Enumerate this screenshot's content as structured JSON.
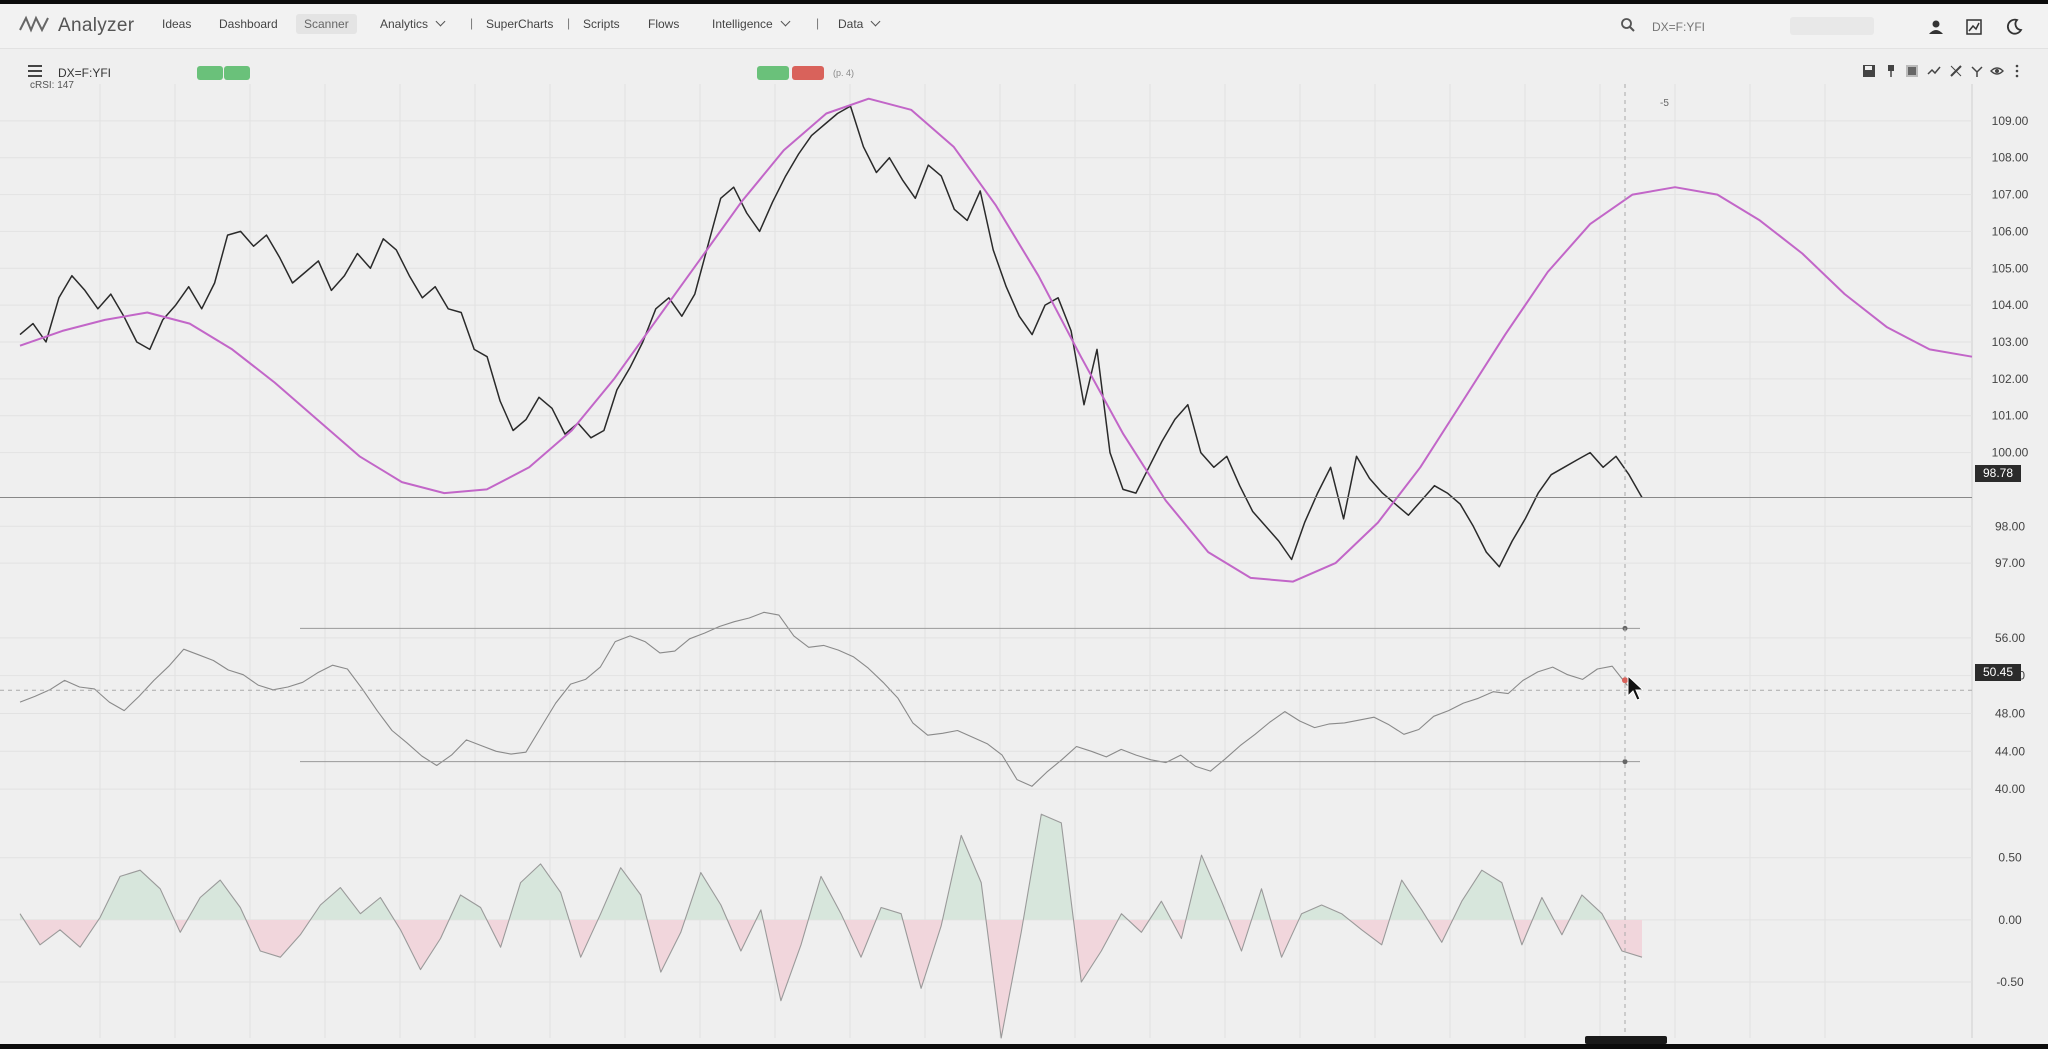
{
  "app": {
    "name": "Analyzer"
  },
  "nav": {
    "items": [
      "Ideas",
      "Dashboard",
      "Scanner",
      "Analytics",
      "SuperCharts",
      "Scripts",
      "Flows",
      "Intelligence",
      "Data"
    ],
    "active": "Scanner"
  },
  "search": {
    "placeholder": "DX=F:YFI"
  },
  "chart": {
    "symbol": "DX=F:YFI",
    "sub_info": "cRSI: 147",
    "status_text": "(p. 4)",
    "cursor_bar_label": "-5",
    "last_price_label": "98.78",
    "rsi_value_label": "50.45"
  },
  "colors": {
    "price_line": "#2a2a2a",
    "cycle_line": "#c266c8",
    "rsi_line": "#8a8a8a",
    "pill_green": "#6ac17a",
    "pill_red": "#d9625b",
    "osc_positive_fill": "#d7e6dc",
    "osc_negative_fill": "#f1d6dc"
  },
  "icons": [
    "menu-icon",
    "search-icon",
    "user-icon",
    "chart-settings-icon",
    "dark-mode-icon",
    "save-icon",
    "pin-icon",
    "layout-icon",
    "compare-icon",
    "draw-tool-icon",
    "indicator-icon",
    "eye-icon",
    "more-icon"
  ],
  "chart_data": [
    {
      "type": "line",
      "title": "",
      "series": [
        {
          "name": "",
          "color": "#2a2a2a",
          "values": [
            103.2,
            103.5,
            103.0,
            104.2,
            104.8,
            104.4,
            103.9,
            104.3,
            103.7,
            103.0,
            102.8,
            103.6,
            104.0,
            104.5,
            103.9,
            104.6,
            105.9,
            106.0,
            105.6,
            105.9,
            105.3,
            104.6,
            104.9,
            105.2,
            104.4,
            104.8,
            105.4,
            105.0,
            105.8,
            105.5,
            104.8,
            104.2,
            104.5,
            103.9,
            103.8,
            102.8,
            102.6,
            101.4,
            100.6,
            100.9,
            101.5,
            101.2,
            100.5,
            100.8,
            100.4,
            100.6,
            101.7,
            102.3,
            103.0,
            103.9,
            104.2,
            103.7,
            104.3,
            105.6,
            106.9,
            107.2,
            106.5,
            106.0,
            106.8,
            107.5,
            108.1,
            108.6,
            108.9,
            109.2,
            109.4,
            108.3,
            107.6,
            108.0,
            107.4,
            106.9,
            107.8,
            107.5,
            106.6,
            106.3,
            107.1,
            105.5,
            104.5,
            103.7,
            103.2,
            104.0,
            104.2,
            103.3,
            101.3,
            102.8,
            100.0,
            99.0,
            98.9,
            99.6,
            100.3,
            100.9,
            101.3,
            100.0,
            99.6,
            99.9,
            99.1,
            98.4,
            98.0,
            97.6,
            97.1,
            98.1,
            98.9,
            99.6,
            98.2,
            99.9,
            99.3,
            98.9,
            98.6,
            98.3,
            98.7,
            99.1,
            98.9,
            98.6,
            98.0,
            97.3,
            96.9,
            97.6,
            98.2,
            98.9,
            99.4,
            99.6,
            99.8,
            100.0,
            99.6,
            99.9,
            99.4,
            98.78
          ]
        },
        {
          "name": "",
          "color": "#c266c8",
          "x_start": 0,
          "x_end": 127,
          "values": [
            102.9,
            103.3,
            103.6,
            103.8,
            103.5,
            102.8,
            101.9,
            100.9,
            99.9,
            99.2,
            98.9,
            99.0,
            99.6,
            100.6,
            102.0,
            103.6,
            105.2,
            106.8,
            108.2,
            109.2,
            109.6,
            109.3,
            108.3,
            106.7,
            104.8,
            102.6,
            100.5,
            98.7,
            97.3,
            96.6,
            96.5,
            97.0,
            98.1,
            99.6,
            101.4,
            103.2,
            104.9,
            106.2,
            107.0,
            107.2,
            107.0,
            106.3,
            105.4,
            104.3,
            103.4,
            102.8,
            102.6
          ]
        }
      ],
      "ylabel": "",
      "ylim": [
        96.0,
        110.0
      ],
      "y_ticks": [
        97.0,
        98.0,
        100.0,
        101.0,
        102.0,
        103.0,
        104.0,
        105.0,
        106.0,
        107.0,
        108.0,
        109.0
      ],
      "grid": true
    },
    {
      "type": "line",
      "title": "",
      "series": [
        {
          "name": "",
          "color": "#8a8a8a",
          "values": [
            49.2,
            49.8,
            50.5,
            51.5,
            50.8,
            50.6,
            49.2,
            48.3,
            49.8,
            51.5,
            53.0,
            54.8,
            54.2,
            53.6,
            52.6,
            52.1,
            51.0,
            50.5,
            50.8,
            51.3,
            52.3,
            53.1,
            52.7,
            50.6,
            48.3,
            46.2,
            44.9,
            43.5,
            42.5,
            43.6,
            45.2,
            44.6,
            44.0,
            43.7,
            43.9,
            46.5,
            49.1,
            51.1,
            51.6,
            52.9,
            55.6,
            56.2,
            55.6,
            54.4,
            54.6,
            55.9,
            56.5,
            57.2,
            57.7,
            58.1,
            58.7,
            58.4,
            56.2,
            55.0,
            55.2,
            54.7,
            54.0,
            52.8,
            51.3,
            49.6,
            47.0,
            45.7,
            45.9,
            46.2,
            45.5,
            44.8,
            43.6,
            41.0,
            40.3,
            41.8,
            43.1,
            44.5,
            44.0,
            43.4,
            44.2,
            43.6,
            43.1,
            42.8,
            43.6,
            42.4,
            41.9,
            43.2,
            44.6,
            45.8,
            47.1,
            48.2,
            47.2,
            46.5,
            46.9,
            47.0,
            47.3,
            47.6,
            46.8,
            45.8,
            46.3,
            47.7,
            48.3,
            49.1,
            49.6,
            50.3,
            50.1,
            51.5,
            52.4,
            52.9,
            52.1,
            51.6,
            52.7,
            53.0,
            51.0,
            50.45
          ]
        }
      ],
      "reference_lines": [
        57.0,
        42.9
      ],
      "ylabel": "",
      "ylim": [
        38.0,
        60.0
      ],
      "y_ticks": [
        40.0,
        44.0,
        48.0,
        52.0,
        56.0
      ],
      "grid": true
    },
    {
      "type": "area",
      "title": "",
      "series": [
        {
          "name": "",
          "color": "#9a9a9a",
          "values": [
            0.05,
            -0.2,
            -0.08,
            -0.22,
            0.02,
            0.35,
            0.4,
            0.25,
            -0.1,
            0.18,
            0.32,
            0.1,
            -0.25,
            -0.3,
            -0.12,
            0.12,
            0.26,
            0.05,
            0.18,
            -0.08,
            -0.4,
            -0.15,
            0.2,
            0.1,
            -0.22,
            0.3,
            0.45,
            0.22,
            -0.3,
            0.05,
            0.42,
            0.2,
            -0.42,
            -0.1,
            0.38,
            0.12,
            -0.25,
            0.08,
            -0.65,
            -0.2,
            0.35,
            0.05,
            -0.3,
            0.1,
            0.05,
            -0.55,
            -0.05,
            0.68,
            0.3,
            -0.95,
            -0.1,
            0.85,
            0.78,
            -0.5,
            -0.25,
            0.05,
            -0.1,
            0.15,
            -0.15,
            0.52,
            0.15,
            -0.25,
            0.25,
            -0.3,
            0.05,
            0.12,
            0.05,
            -0.08,
            -0.2,
            0.32,
            0.08,
            -0.18,
            0.15,
            0.4,
            0.3,
            -0.2,
            0.18,
            -0.12,
            0.2,
            0.05,
            -0.25,
            -0.3
          ]
        }
      ],
      "ylabel": "",
      "ylim": [
        -0.95,
        0.9
      ],
      "y_ticks": [
        -0.5,
        0.0,
        0.5
      ],
      "grid": true
    }
  ]
}
